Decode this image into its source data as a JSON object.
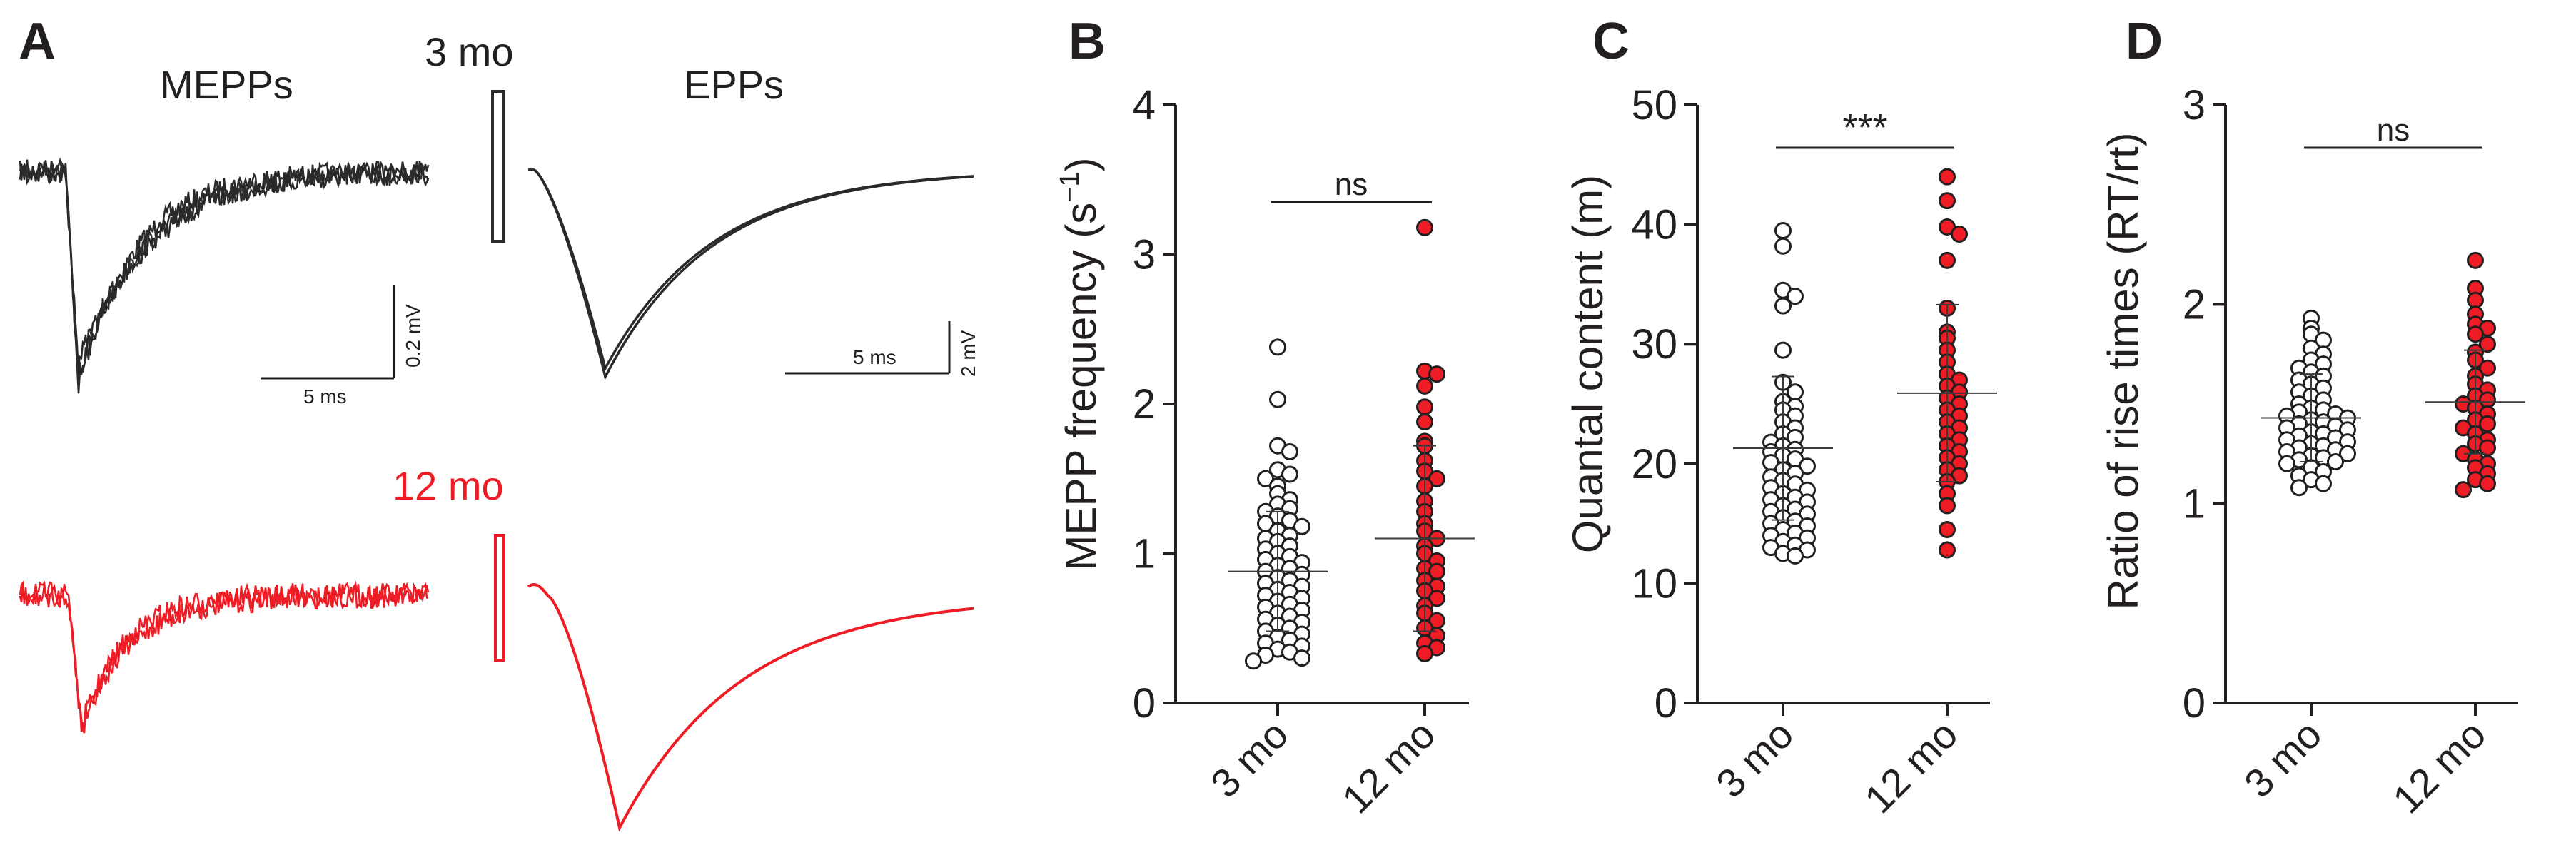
{
  "panelA": {
    "letter": "A",
    "mepps_title": "MEPPs",
    "epps_title": "EPPs",
    "group3": "3 mo",
    "group12": "12 mo",
    "scale_mepp_time": "5 ms",
    "scale_mepp_volt": "0.2 mV",
    "scale_epp_time": "5 ms",
    "scale_epp_volt": "2 mV",
    "colors": {
      "black": "#2a2a2a",
      "red": "#ee1c24"
    }
  },
  "chart_data": [
    {
      "panel": "B",
      "type": "scatter",
      "ylabel": "MEPP frequency (s⁻¹)",
      "ylabel_main": "MEPP frequency (s",
      "ylabel_sup": "−1",
      "ylabel_close": ")",
      "categories": [
        "3 mo",
        "12 mo"
      ],
      "ylim": [
        0,
        4
      ],
      "yticks": [
        0,
        1,
        2,
        3,
        4
      ],
      "significance": "ns",
      "series": [
        {
          "name": "3 mo",
          "fill": "#ffffff",
          "values": [
            2.38,
            2.03,
            1.72,
            1.68,
            1.56,
            1.53,
            1.5,
            1.45,
            1.4,
            1.36,
            1.33,
            1.3,
            1.28,
            1.25,
            1.22,
            1.2,
            1.18,
            1.15,
            1.12,
            1.1,
            1.08,
            1.05,
            1.03,
            1.0,
            0.98,
            0.96,
            0.94,
            0.92,
            0.9,
            0.88,
            0.86,
            0.84,
            0.82,
            0.8,
            0.78,
            0.76,
            0.74,
            0.72,
            0.7,
            0.68,
            0.66,
            0.64,
            0.62,
            0.6,
            0.58,
            0.56,
            0.54,
            0.52,
            0.5,
            0.48,
            0.46,
            0.44,
            0.42,
            0.4,
            0.38,
            0.36,
            0.34,
            0.32,
            0.3,
            0.28
          ],
          "mean": 0.88,
          "sd": 0.4
        },
        {
          "name": "12 mo",
          "fill": "#ee1c24",
          "values": [
            3.18,
            2.22,
            2.2,
            2.12,
            1.98,
            1.88,
            1.75,
            1.72,
            1.62,
            1.55,
            1.5,
            1.45,
            1.35,
            1.28,
            1.2,
            1.15,
            1.1,
            1.05,
            1.0,
            0.95,
            0.9,
            0.88,
            0.82,
            0.78,
            0.75,
            0.7,
            0.65,
            0.6,
            0.55,
            0.5,
            0.45,
            0.4,
            0.37,
            0.33
          ],
          "mean": 1.1,
          "sd": 0.62
        }
      ]
    },
    {
      "panel": "C",
      "type": "scatter",
      "ylabel": "Quantal content (m)",
      "categories": [
        "3 mo",
        "12 mo"
      ],
      "ylim": [
        0,
        50
      ],
      "yticks": [
        0,
        10,
        20,
        30,
        40,
        50
      ],
      "significance": "***",
      "series": [
        {
          "name": "3 mo",
          "fill": "#ffffff",
          "values": [
            39.5,
            38.2,
            34.5,
            34.0,
            33.2,
            29.5,
            26.8,
            26.0,
            25.2,
            24.8,
            24.5,
            24.0,
            23.5,
            23.0,
            22.5,
            22.2,
            21.8,
            21.5,
            21.2,
            21.0,
            20.7,
            20.4,
            20.1,
            19.8,
            19.5,
            19.2,
            18.9,
            18.6,
            18.3,
            18.0,
            17.8,
            17.5,
            17.2,
            17.0,
            16.8,
            16.5,
            16.2,
            16.0,
            15.8,
            15.5,
            15.2,
            15.0,
            14.8,
            14.5,
            14.2,
            14.0,
            13.8,
            13.5,
            13.2,
            13.0,
            12.8,
            12.5,
            12.3
          ],
          "mean": 21.3,
          "sd": 6.0
        },
        {
          "name": "12 mo",
          "fill": "#ee1c24",
          "values": [
            44.0,
            42.0,
            39.8,
            39.2,
            37.0,
            33.0,
            31.0,
            30.5,
            29.5,
            28.5,
            27.5,
            27.0,
            26.5,
            26.0,
            25.5,
            25.0,
            24.5,
            24.0,
            23.5,
            23.0,
            22.5,
            22.0,
            21.5,
            21.0,
            20.5,
            20.0,
            19.5,
            19.0,
            18.5,
            17.5,
            16.5,
            14.5,
            12.8
          ],
          "mean": 25.9,
          "sd": 7.4
        }
      ]
    },
    {
      "panel": "D",
      "type": "scatter",
      "ylabel": "Ratio of rise times  (RT/rt)",
      "categories": [
        "3 mo",
        "12 mo"
      ],
      "ylim": [
        0,
        3
      ],
      "yticks": [
        0,
        1,
        2,
        3
      ],
      "significance": "ns",
      "series": [
        {
          "name": "3 mo",
          "fill": "#ffffff",
          "values": [
            1.93,
            1.88,
            1.85,
            1.82,
            1.78,
            1.75,
            1.72,
            1.7,
            1.68,
            1.66,
            1.64,
            1.62,
            1.6,
            1.58,
            1.56,
            1.54,
            1.52,
            1.5,
            1.48,
            1.47,
            1.46,
            1.45,
            1.44,
            1.43,
            1.42,
            1.41,
            1.4,
            1.39,
            1.38,
            1.37,
            1.36,
            1.35,
            1.34,
            1.33,
            1.32,
            1.31,
            1.3,
            1.29,
            1.28,
            1.27,
            1.26,
            1.25,
            1.24,
            1.23,
            1.22,
            1.21,
            1.2,
            1.18,
            1.16,
            1.14,
            1.12,
            1.1,
            1.08
          ],
          "mean": 1.43,
          "sd": 0.22
        },
        {
          "name": "12 mo",
          "fill": "#ee1c24",
          "values": [
            2.22,
            2.08,
            2.02,
            1.95,
            1.9,
            1.88,
            1.85,
            1.8,
            1.76,
            1.72,
            1.68,
            1.64,
            1.6,
            1.57,
            1.54,
            1.52,
            1.5,
            1.48,
            1.45,
            1.42,
            1.4,
            1.38,
            1.35,
            1.32,
            1.3,
            1.28,
            1.25,
            1.22,
            1.2,
            1.18,
            1.15,
            1.12,
            1.1,
            1.07
          ],
          "mean": 1.51,
          "sd": 0.26
        }
      ]
    }
  ]
}
